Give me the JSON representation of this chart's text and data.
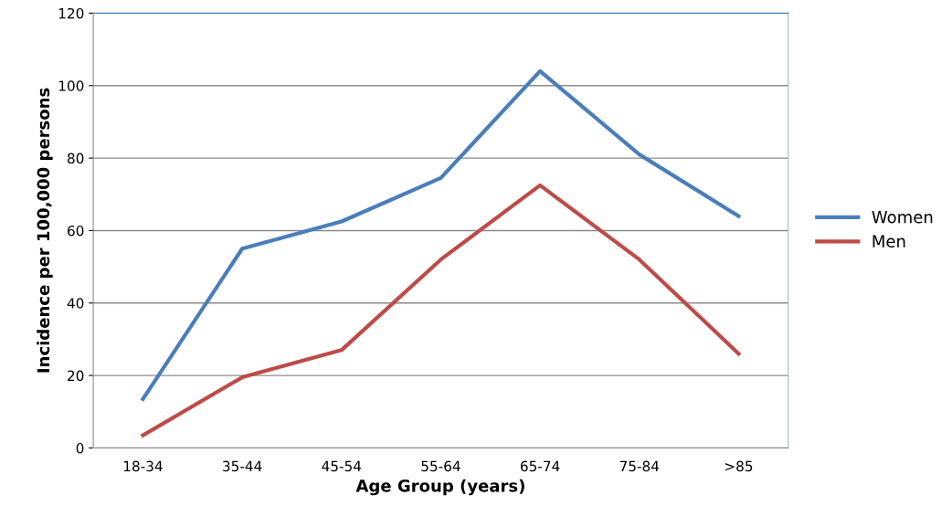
{
  "chart_data": {
    "type": "line",
    "xlabel": "Age Group (years)",
    "ylabel": "Incidence per 100,000 persons",
    "categories": [
      "18-34",
      "35-44",
      "45-54",
      "55-64",
      "65-74",
      "75-84",
      ">85"
    ],
    "series": [
      {
        "name": "Women",
        "color": "#4a7ebb",
        "values": [
          13.5,
          55,
          62.5,
          74.5,
          104,
          81,
          64
        ]
      },
      {
        "name": "Men",
        "color": "#be4b48",
        "values": [
          3.5,
          19.5,
          27,
          52,
          72.5,
          52,
          26
        ]
      }
    ],
    "ylim": [
      0,
      120
    ],
    "yticks": [
      0,
      20,
      40,
      60,
      80,
      100,
      120
    ],
    "grid": "y",
    "legend": "right",
    "marker": "none",
    "line_style": "solid"
  }
}
